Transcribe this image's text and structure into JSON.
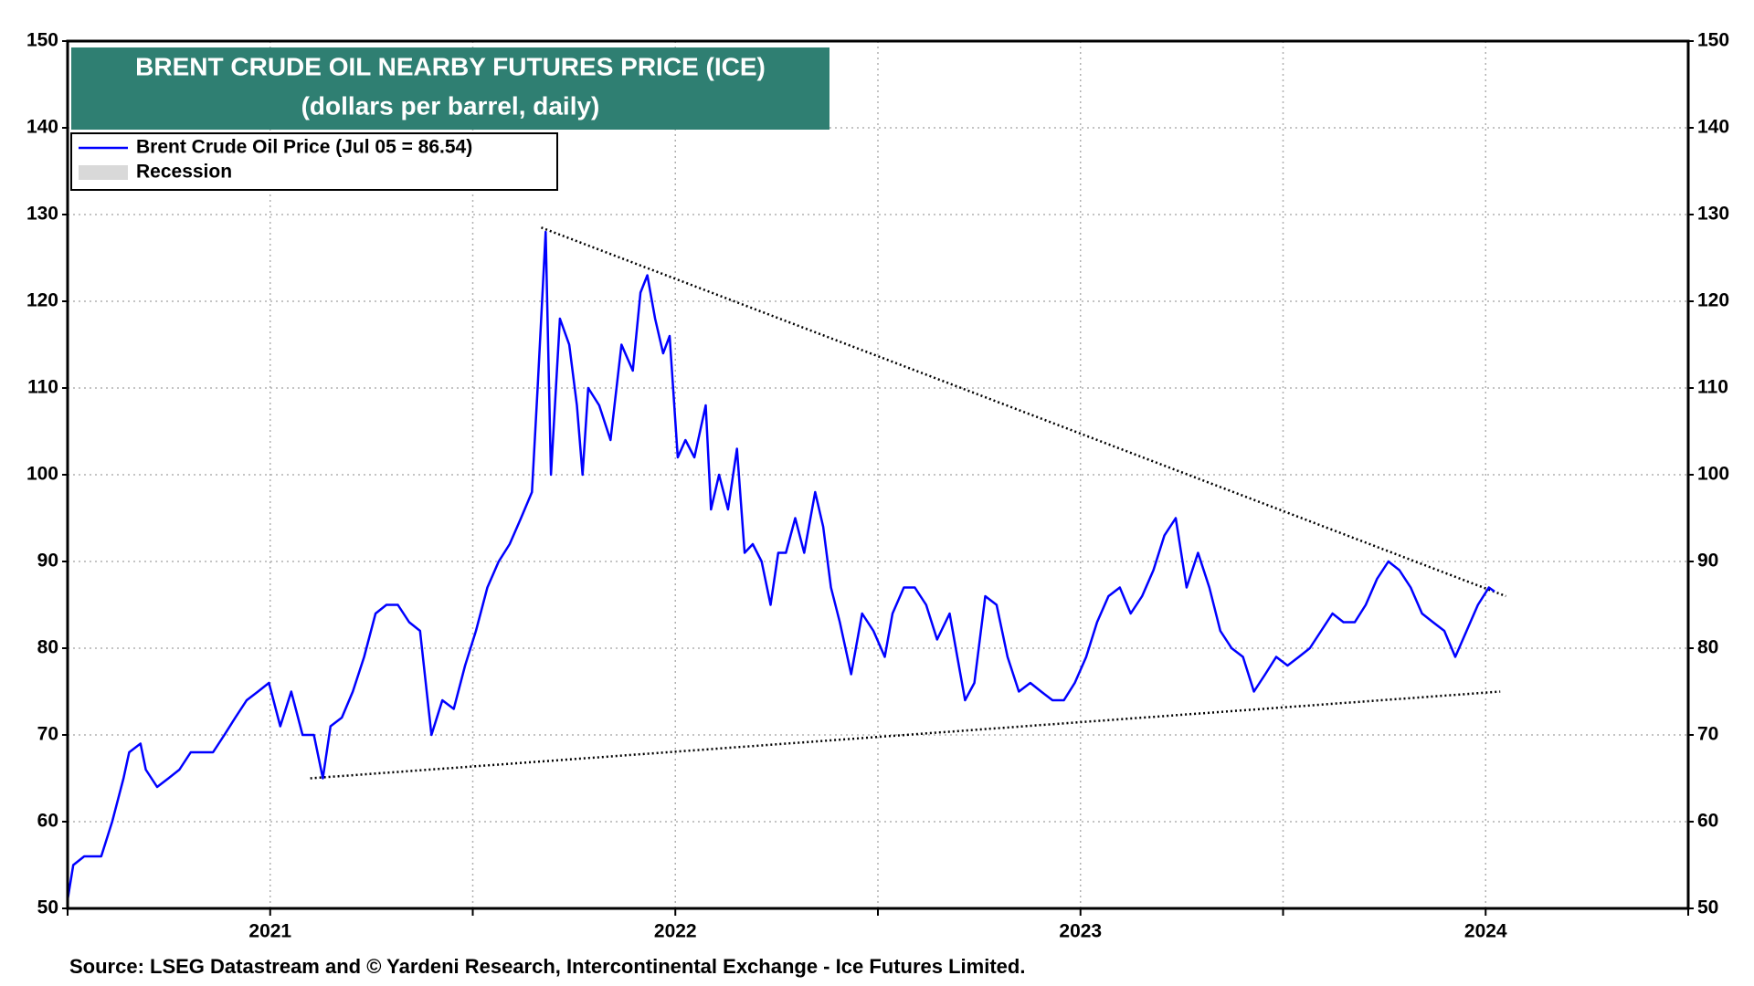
{
  "chart_data": {
    "type": "line",
    "title": "BRENT CRUDE OIL NEARBY FUTURES  PRICE (ICE)",
    "subtitle": "(dollars per barrel, daily)",
    "source": "Source: LSEG Datastream and © Yardeni Research, Intercontinental Exchange - Ice Futures Limited.",
    "x": [
      2020.5,
      2020.514,
      2020.541,
      2020.583,
      2020.61,
      2020.638,
      2020.652,
      2020.68,
      2020.693,
      2020.721,
      2020.749,
      2020.776,
      2020.804,
      2020.831,
      2020.859,
      2020.887,
      2020.914,
      2020.942,
      2020.97,
      2020.997,
      2021.025,
      2021.052,
      2021.08,
      2021.108,
      2021.13,
      2021.149,
      2021.177,
      2021.204,
      2021.232,
      2021.26,
      2021.287,
      2021.315,
      2021.343,
      2021.37,
      2021.398,
      2021.425,
      2021.453,
      2021.481,
      2021.508,
      2021.536,
      2021.564,
      2021.591,
      2021.619,
      2021.646,
      2021.66,
      2021.68,
      2021.693,
      2021.715,
      2021.738,
      2021.757,
      2021.771,
      2021.785,
      2021.812,
      2021.84,
      2021.867,
      2021.895,
      2021.914,
      2021.931,
      2021.95,
      2021.97,
      2021.986,
      2022.006,
      2022.025,
      2022.047,
      2022.075,
      2022.088,
      2022.108,
      2022.13,
      2022.152,
      2022.171,
      2022.191,
      2022.213,
      2022.235,
      2022.254,
      2022.273,
      2022.296,
      2022.318,
      2022.345,
      2022.365,
      2022.384,
      2022.406,
      2022.434,
      2022.461,
      2022.489,
      2022.517,
      2022.536,
      2022.564,
      2022.591,
      2022.619,
      2022.646,
      2022.677,
      2022.696,
      2022.715,
      2022.738,
      2022.765,
      2022.793,
      2022.82,
      2022.848,
      2022.876,
      2022.903,
      2022.931,
      2022.959,
      2022.986,
      2023.014,
      2023.041,
      2023.069,
      2023.097,
      2023.124,
      2023.152,
      2023.18,
      2023.207,
      2023.235,
      2023.262,
      2023.29,
      2023.318,
      2023.345,
      2023.373,
      2023.401,
      2023.428,
      2023.456,
      2023.483,
      2023.511,
      2023.539,
      2023.566,
      2023.594,
      2023.622,
      2023.649,
      2023.677,
      2023.704,
      2023.732,
      2023.76,
      2023.787,
      2023.815,
      2023.843,
      2023.87,
      2023.898,
      2023.925,
      2023.953,
      2023.981,
      2024.008,
      2024.022
    ],
    "series": [
      {
        "name": "Brent Crude Oil Price (Jul 05 = 86.54)",
        "color": "#0000ff",
        "values": [
          51,
          55,
          56,
          56,
          60,
          65,
          68,
          69,
          66,
          64,
          65,
          66,
          68,
          68,
          68,
          70,
          72,
          74,
          75,
          76,
          71,
          75,
          70,
          70,
          65,
          71,
          72,
          75,
          79,
          84,
          85,
          85,
          83,
          82,
          70,
          74,
          73,
          78,
          82,
          87,
          90,
          92,
          95,
          98,
          110,
          128,
          100,
          118,
          115,
          108,
          100,
          110,
          108,
          104,
          115,
          112,
          121,
          123,
          118,
          114,
          116,
          102,
          104,
          102,
          108,
          96,
          100,
          96,
          103,
          91,
          92,
          90,
          85,
          91,
          91,
          95,
          91,
          98,
          94,
          87,
          83,
          77,
          84,
          82,
          79,
          84,
          87,
          87,
          85,
          81,
          84,
          79,
          74,
          76,
          86,
          85,
          79,
          75,
          76,
          75,
          74,
          74,
          76,
          79,
          83,
          86,
          87,
          84,
          86,
          89,
          93,
          95,
          87,
          91,
          87,
          82,
          80,
          79,
          75,
          77,
          79,
          78,
          79,
          80,
          82,
          84,
          83,
          83,
          85,
          88,
          90,
          89,
          87,
          84,
          83,
          82,
          79,
          82,
          85,
          87,
          86.54
        ]
      }
    ],
    "legend_extra": {
      "name": "Recession",
      "color": "#d9d9d9"
    },
    "trend_lines": [
      {
        "x": [
          2021.669,
          2024.05
        ],
        "y": [
          128.5,
          86
        ]
      },
      {
        "x": [
          2021.099,
          2024.036
        ],
        "y": [
          65,
          75
        ]
      }
    ],
    "xlim": [
      2020.5,
      2024.5
    ],
    "xticks": [
      2021,
      2022,
      2023,
      2024
    ],
    "x_minor_ticks": [
      2020.5,
      2021.5,
      2022.5,
      2023.5,
      2024.5
    ],
    "ylim": [
      50,
      150
    ],
    "yticks": [
      50,
      60,
      70,
      80,
      90,
      100,
      110,
      120,
      130,
      140,
      150
    ],
    "grid": true
  }
}
